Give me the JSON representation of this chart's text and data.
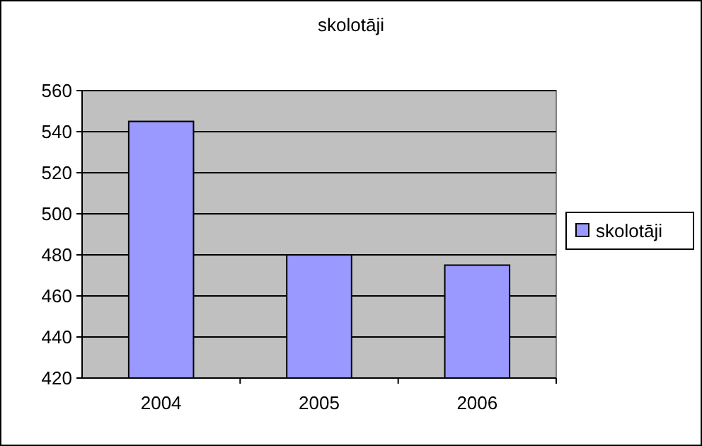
{
  "chart_data": {
    "type": "bar",
    "title": "skolotāji",
    "categories": [
      "2004",
      "2005",
      "2006"
    ],
    "series": [
      {
        "name": "skolotāji",
        "color": "#9999ff",
        "values": [
          545,
          480,
          475
        ]
      }
    ],
    "ylim": [
      420,
      560
    ],
    "yticks": [
      420,
      440,
      460,
      480,
      500,
      520,
      540,
      560
    ],
    "grid": "y",
    "legend": "right"
  }
}
